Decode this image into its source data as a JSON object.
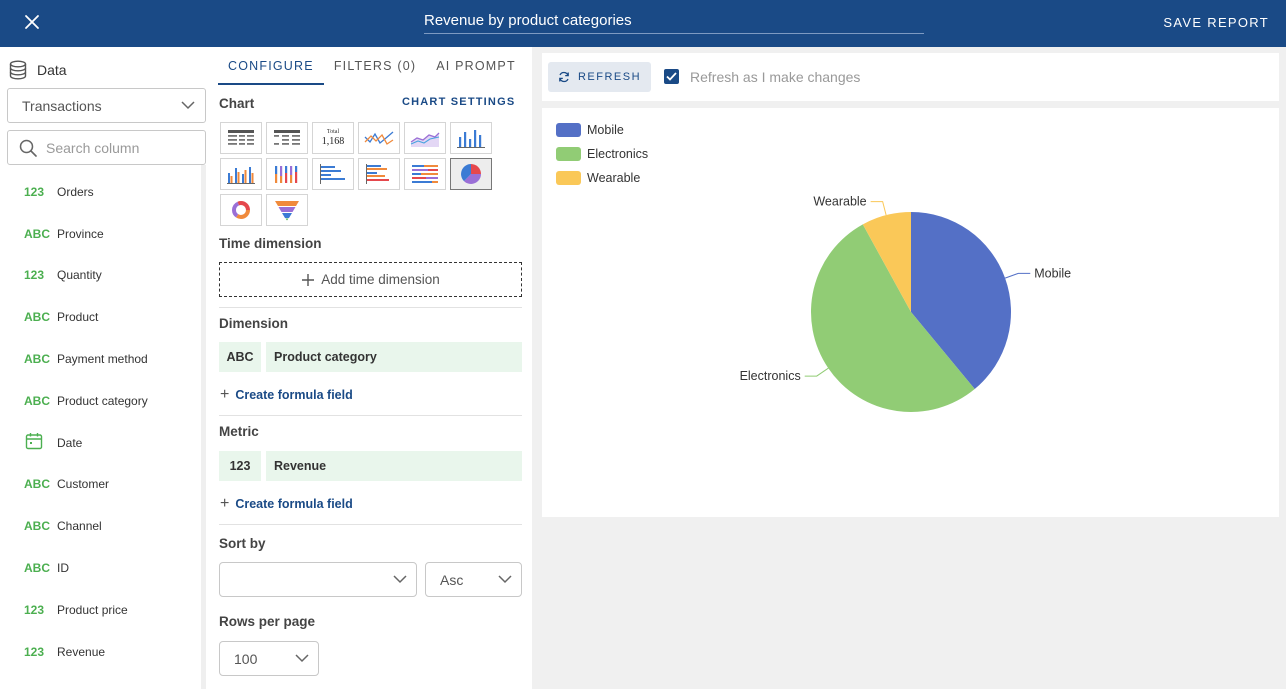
{
  "header": {
    "title": "Revenue by product categories",
    "save_label": "SAVE REPORT"
  },
  "left": {
    "data_label": "Data",
    "source_select": "Transactions",
    "search_placeholder": "Search column",
    "fields": [
      {
        "type": "123",
        "name": "Orders"
      },
      {
        "type": "ABC",
        "name": "Province"
      },
      {
        "type": "123",
        "name": "Quantity"
      },
      {
        "type": "ABC",
        "name": "Product"
      },
      {
        "type": "ABC",
        "name": "Payment method"
      },
      {
        "type": "ABC",
        "name": "Product category"
      },
      {
        "type": "date",
        "name": "Date"
      },
      {
        "type": "ABC",
        "name": "Customer"
      },
      {
        "type": "ABC",
        "name": "Channel"
      },
      {
        "type": "ABC",
        "name": "ID"
      },
      {
        "type": "123",
        "name": "Product price"
      },
      {
        "type": "123",
        "name": "Revenue"
      }
    ]
  },
  "mid": {
    "tabs": [
      {
        "label": "CONFIGURE",
        "active": true
      },
      {
        "label": "FILTERS (0)",
        "active": false
      },
      {
        "label": "AI PROMPT",
        "active": false
      }
    ],
    "chart_title": "Chart",
    "chart_settings": "CHART SETTINGS",
    "chart_types": [
      "table",
      "pivot-table",
      "number",
      "line",
      "area",
      "column",
      "grouped-column",
      "stacked-column",
      "bar",
      "grouped-bar",
      "stacked-bar",
      "pie",
      "donut",
      "funnel"
    ],
    "selected_chart_type": "pie",
    "number_icon_text": {
      "small": "Total",
      "value": "1,168"
    },
    "time_dimension_title": "Time dimension",
    "add_time_label": "Add time dimension",
    "dimension_title": "Dimension",
    "dimension": {
      "type": "ABC",
      "field": "Product category"
    },
    "metric_title": "Metric",
    "metric": {
      "type": "123",
      "field": "Revenue"
    },
    "formula_label": "Create formula field",
    "sort_title": "Sort by",
    "sort_field": "",
    "sort_order": "Asc",
    "rows_title": "Rows per page",
    "rows_value": "100"
  },
  "right": {
    "refresh_label": "REFRESH",
    "auto_refresh_label": "Refresh as I make changes",
    "auto_refresh_checked": true
  },
  "colors": {
    "header": "#1a4a86",
    "accent": "#1a4a86",
    "type_green": "#4caf50",
    "pill_bg": "#e9f6ec"
  },
  "chart_data": {
    "type": "pie",
    "categories": [
      "Mobile",
      "Electronics",
      "Wearable"
    ],
    "values": [
      39,
      53,
      8
    ],
    "colors": [
      "#5470c6",
      "#91cc75",
      "#fac858"
    ],
    "legend_position": "top-left"
  }
}
